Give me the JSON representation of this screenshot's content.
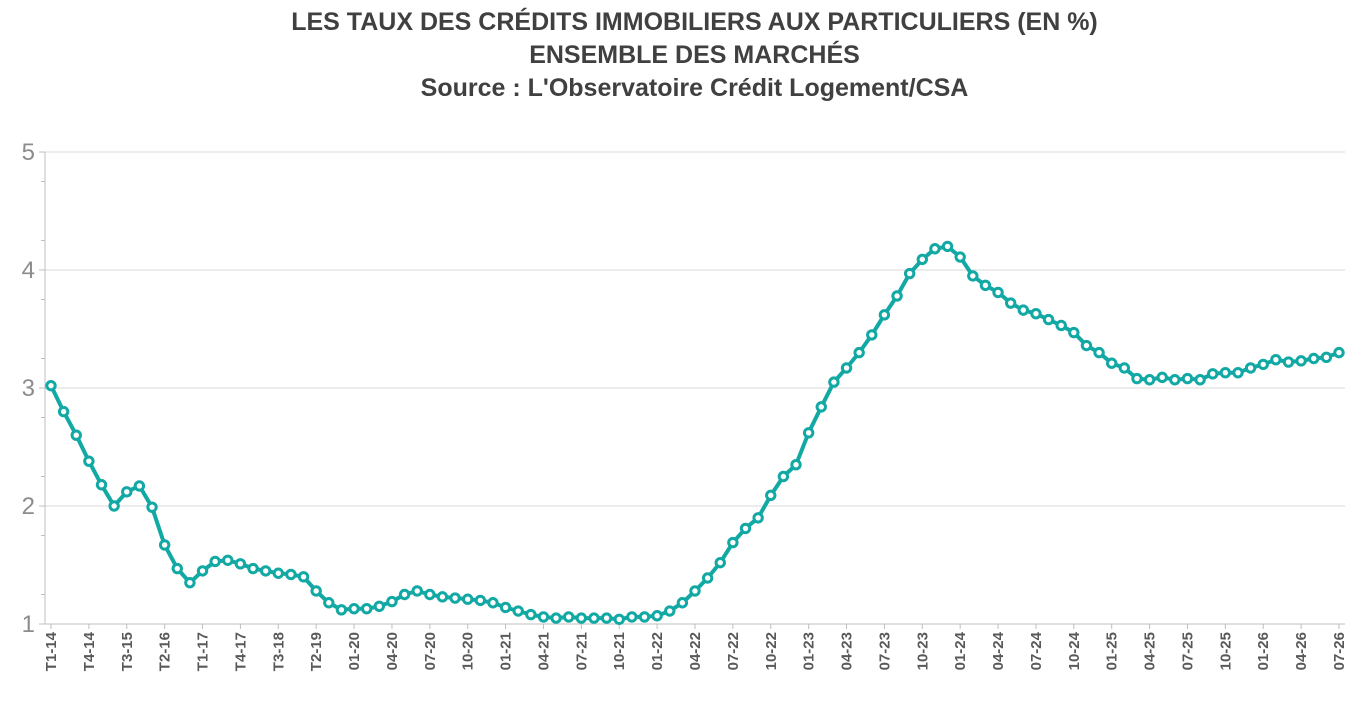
{
  "chart_data": {
    "type": "line",
    "title": "LES TAUX DES CRÉDITS IMMOBILIERS AUX PARTICULIERS (EN %)",
    "subtitle": "ENSEMBLE DES MARCHÉS",
    "source": "Source : L'Observatoire Crédit Logement/CSA",
    "xlabel": "",
    "ylabel": "",
    "ylim": [
      1,
      5
    ],
    "y_ticks": [
      "1",
      "2",
      "3",
      "4",
      "5"
    ],
    "grid": true,
    "legend": "none",
    "color": "#12A8A4",
    "x_tick_labels": [
      "T1-14",
      "T4-14",
      "T3-15",
      "T2-16",
      "T1-17",
      "T4-17",
      "T3-18",
      "T2-19",
      "01-20",
      "04-20",
      "07-20",
      "10-20",
      "01-21",
      "04-21",
      "07-21",
      "10-21",
      "01-22",
      "04-22",
      "07-22",
      "10-22",
      "01-23",
      "04-23",
      "07-23",
      "10-23",
      "01-24",
      "04-24",
      "07-24",
      "10-24",
      "01-25",
      "04-25",
      "07-25",
      "10-25",
      "01-26",
      "04-26",
      "07-26"
    ],
    "series": [
      {
        "values": [
          3.02,
          2.8,
          2.6,
          2.38,
          2.18,
          2.0,
          2.12,
          2.17,
          1.99,
          1.67,
          1.47,
          1.35,
          1.45,
          1.53,
          1.54,
          1.51,
          1.47,
          1.45,
          1.43,
          1.42,
          1.4,
          1.28,
          1.18,
          1.12,
          1.13,
          1.13,
          1.15,
          1.19,
          1.25,
          1.28,
          1.25,
          1.23,
          1.22,
          1.21,
          1.2,
          1.18,
          1.14,
          1.11,
          1.08,
          1.06,
          1.05,
          1.06,
          1.05,
          1.05,
          1.05,
          1.04,
          1.06,
          1.06,
          1.07,
          1.11,
          1.18,
          1.28,
          1.39,
          1.52,
          1.69,
          1.81,
          1.9,
          2.09,
          2.25,
          2.35,
          2.62,
          2.84,
          3.05,
          3.17,
          3.3,
          3.45,
          3.62,
          3.78,
          3.97,
          4.09,
          4.18,
          4.2,
          4.11,
          3.95,
          3.87,
          3.81,
          3.72,
          3.66,
          3.63,
          3.58,
          3.53,
          3.47,
          3.36,
          3.3,
          3.21,
          3.17,
          3.08,
          3.07,
          3.09,
          3.07,
          3.08,
          3.07,
          3.12,
          3.13,
          3.13,
          3.17,
          3.2,
          3.24,
          3.22,
          3.23,
          3.25,
          3.26,
          3.3
        ]
      }
    ]
  }
}
